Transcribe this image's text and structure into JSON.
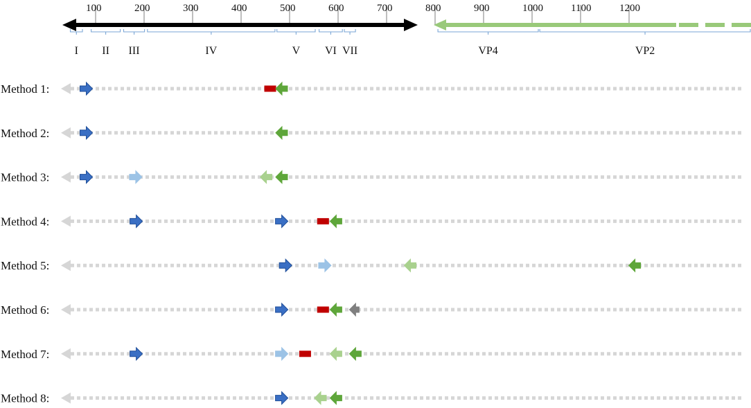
{
  "colors": {
    "axis_black": "#000000",
    "vp_green": "#99c97a",
    "gridline": "#9a9a9a",
    "bracket_blue": "#7aa6d6",
    "dotted_gray": "#d6d6d6",
    "dark_blue": "#3a6fc4",
    "light_blue": "#9cc3e6",
    "dark_green": "#5ea63a",
    "light_green": "#a9d18e",
    "red": "#c00000",
    "gray": "#7f7f7f"
  },
  "scale": {
    "ticks": [
      "100",
      "200",
      "300",
      "400",
      "500",
      "600",
      "700",
      "800",
      "900",
      "1000",
      "1100",
      "1200"
    ],
    "nucleotide_range": [
      0,
      1300
    ],
    "black_segment": [
      0,
      730
    ],
    "green_segment": [
      760,
      1260
    ]
  },
  "regions": [
    {
      "label": "I",
      "start": 5,
      "end": 30
    },
    {
      "label": "II",
      "start": 48,
      "end": 108
    },
    {
      "label": "III",
      "start": 115,
      "end": 158
    },
    {
      "label": "IV",
      "start": 164,
      "end": 427
    },
    {
      "label": "V",
      "start": 431,
      "end": 510
    },
    {
      "label": "VI",
      "start": 518,
      "end": 566
    },
    {
      "label": "VII",
      "start": 570,
      "end": 593
    },
    {
      "label": "VP4",
      "start": 763,
      "end": 970
    },
    {
      "label": "VP2",
      "start": 973,
      "end": 1500
    }
  ],
  "methods": [
    {
      "label": "Method 1:",
      "marks": [
        {
          "kind": "fwd-dark-blue",
          "pos": 5
        },
        {
          "kind": "probe-red",
          "pos": 385
        },
        {
          "kind": "rev-dark-green",
          "pos": 410
        }
      ]
    },
    {
      "label": "Method 2:",
      "marks": [
        {
          "kind": "fwd-dark-blue",
          "pos": 5
        },
        {
          "kind": "rev-dark-green",
          "pos": 410
        }
      ]
    },
    {
      "label": "Method 3:",
      "marks": [
        {
          "kind": "fwd-dark-blue",
          "pos": 5
        },
        {
          "kind": "fwd-light-blue",
          "pos": 107
        },
        {
          "kind": "rev-light-green",
          "pos": 378
        },
        {
          "kind": "rev-dark-green",
          "pos": 410
        }
      ]
    },
    {
      "label": "Method 4:",
      "marks": [
        {
          "kind": "fwd-dark-blue",
          "pos": 108
        },
        {
          "kind": "fwd-dark-blue",
          "pos": 408
        },
        {
          "kind": "probe-red",
          "pos": 494
        },
        {
          "kind": "rev-dark-green",
          "pos": 522
        }
      ]
    },
    {
      "label": "Method 5:",
      "marks": [
        {
          "kind": "fwd-dark-blue",
          "pos": 416
        },
        {
          "kind": "fwd-light-blue",
          "pos": 497
        },
        {
          "kind": "rev-light-green",
          "pos": 675
        },
        {
          "kind": "rev-dark-green",
          "pos": 1138
        }
      ]
    },
    {
      "label": "Method 6:",
      "marks": [
        {
          "kind": "fwd-dark-blue",
          "pos": 408
        },
        {
          "kind": "probe-red",
          "pos": 494
        },
        {
          "kind": "rev-dark-green",
          "pos": 522
        },
        {
          "kind": "rev-gray",
          "pos": 562
        }
      ]
    },
    {
      "label": "Method 7:",
      "marks": [
        {
          "kind": "fwd-dark-blue",
          "pos": 108
        },
        {
          "kind": "fwd-light-blue",
          "pos": 408
        },
        {
          "kind": "probe-red",
          "pos": 457
        },
        {
          "kind": "rev-light-green",
          "pos": 522
        },
        {
          "kind": "rev-dark-green",
          "pos": 562
        }
      ]
    },
    {
      "label": "Method 8:",
      "marks": [
        {
          "kind": "fwd-dark-blue",
          "pos": 408
        },
        {
          "kind": "rev-light-green",
          "pos": 490
        },
        {
          "kind": "rev-dark-green",
          "pos": 522
        }
      ]
    }
  ]
}
